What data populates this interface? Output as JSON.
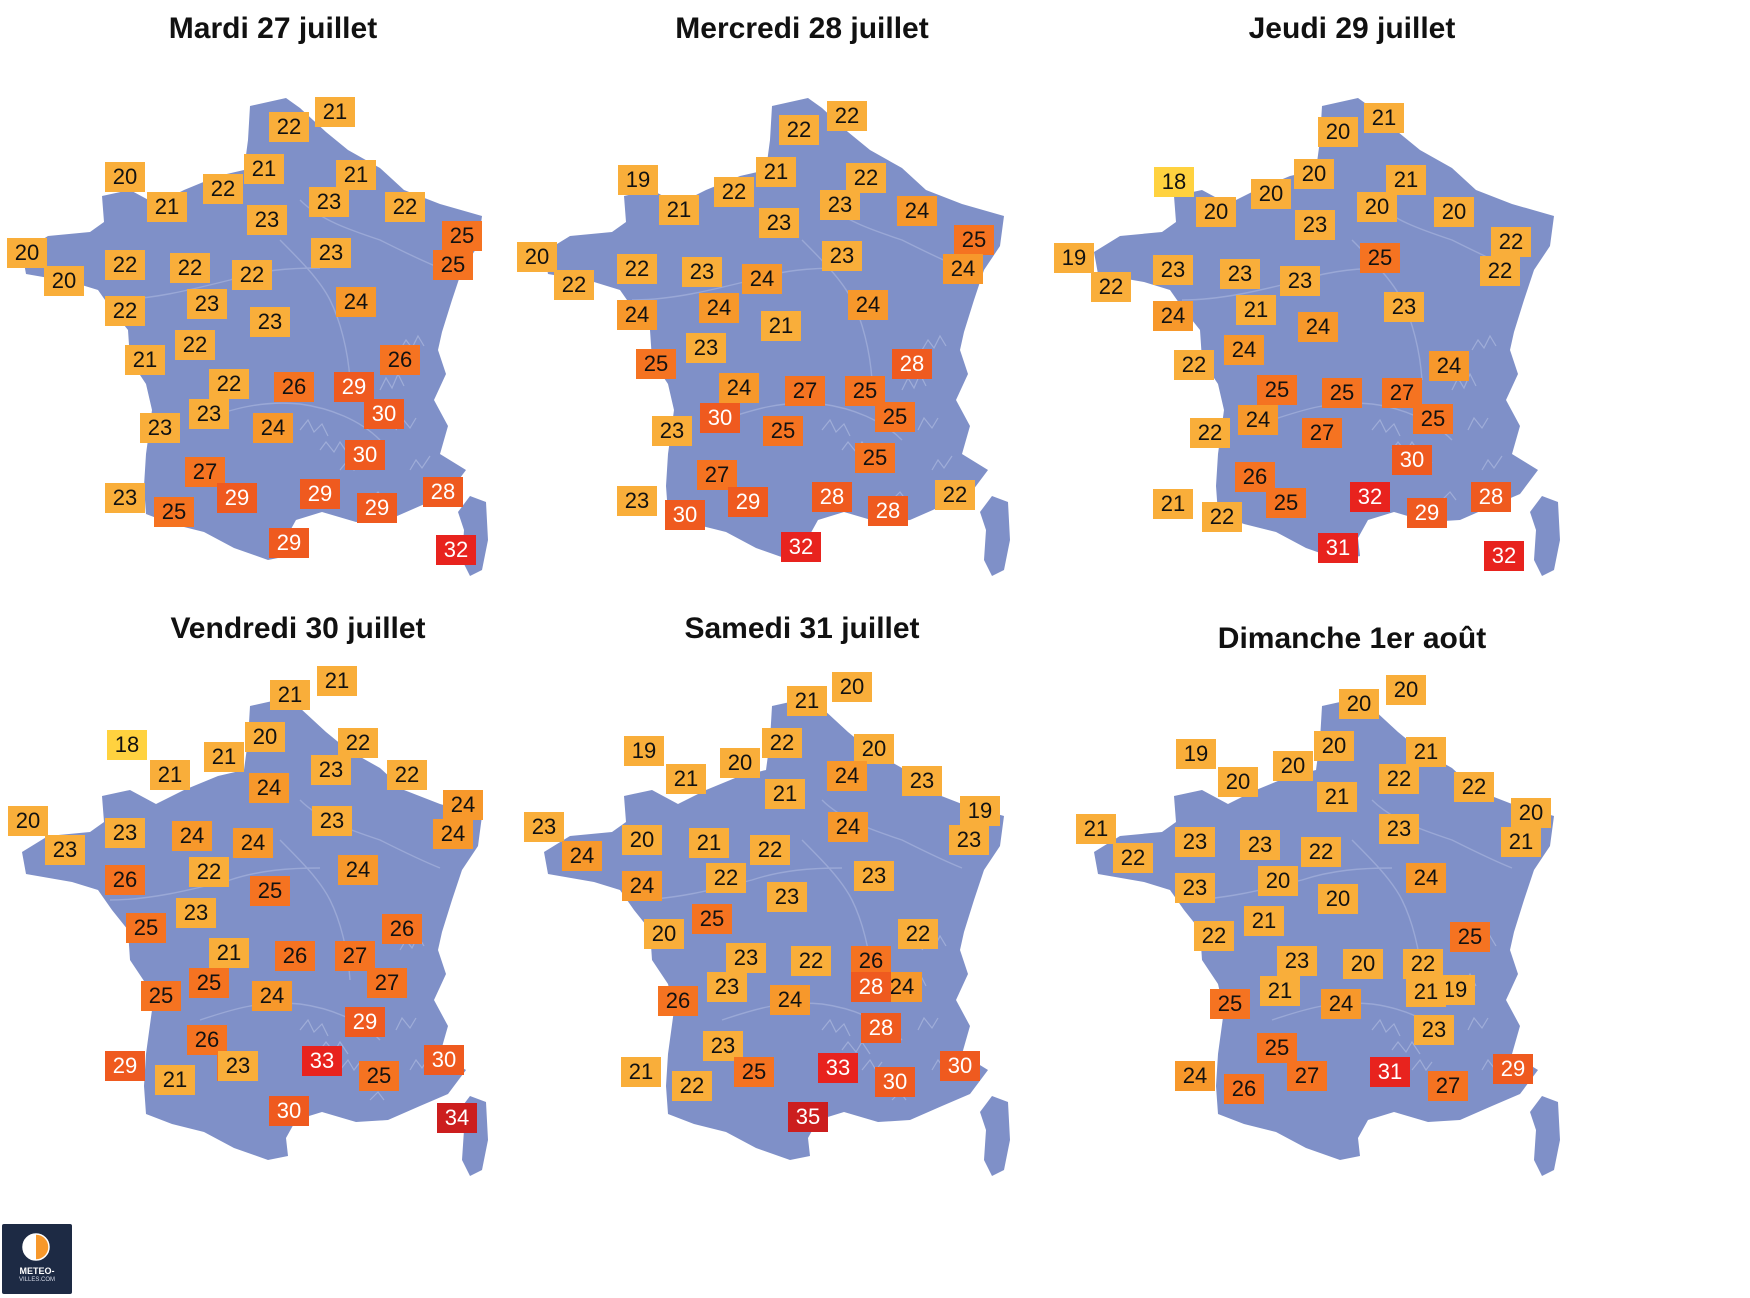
{
  "colors": {
    "map": "#7f90c8",
    "t18": "#ffd23f",
    "t19_23": "#f9ae3a",
    "t24": "#f7982b",
    "t25_27": "#f57321",
    "t28_30": "#ef5a1f",
    "t31_33": "#e8231e",
    "t34_35": "#cc1e1e"
  },
  "logo": {
    "text": "METEO-",
    "sub": "VILLES.COM"
  },
  "panels": [
    {
      "title": "Mardi 27 juillet",
      "temps": [
        21,
        22,
        20,
        21,
        22,
        21,
        21,
        23,
        23,
        22,
        20,
        25,
        25,
        20,
        22,
        22,
        22,
        23,
        23,
        24,
        22,
        23,
        22,
        21,
        26,
        22,
        29,
        26,
        30,
        23,
        24,
        23,
        30,
        27,
        29,
        29,
        29,
        28,
        23,
        25,
        29,
        32
      ]
    },
    {
      "title": "Mercredi 28 juillet",
      "temps": [
        22,
        22,
        19,
        21,
        22,
        21,
        22,
        23,
        23,
        24,
        20,
        25,
        24,
        22,
        22,
        23,
        24,
        24,
        23,
        24,
        24,
        21,
        23,
        25,
        24,
        27,
        25,
        28,
        25,
        23,
        25,
        30,
        25,
        27,
        29,
        28,
        28,
        22,
        23,
        30,
        32
      ]
    },
    {
      "title": "Jeudi 29 juillet",
      "temps": [
        21,
        20,
        18,
        20,
        20,
        20,
        21,
        20,
        23,
        20,
        19,
        22,
        22,
        22,
        23,
        23,
        23,
        21,
        25,
        23,
        24,
        24,
        24,
        22,
        25,
        25,
        27,
        24,
        25,
        22,
        27,
        24,
        30,
        26,
        32,
        28,
        21,
        22,
        25,
        29,
        31,
        32
      ]
    },
    {
      "title": "Vendredi 30 juillet",
      "temps": [
        21,
        21,
        18,
        21,
        21,
        20,
        22,
        23,
        24,
        22,
        20,
        24,
        24,
        23,
        23,
        24,
        24,
        22,
        23,
        24,
        26,
        25,
        23,
        25,
        21,
        26,
        27,
        26,
        27,
        25,
        25,
        26,
        24,
        29,
        26,
        33,
        29,
        21,
        23,
        25,
        30,
        30,
        34
      ]
    },
    {
      "title": "Samedi 31 juillet",
      "temps": [
        20,
        21,
        19,
        21,
        20,
        22,
        20,
        24,
        21,
        23,
        23,
        19,
        23,
        24,
        20,
        21,
        22,
        22,
        24,
        23,
        24,
        23,
        25,
        20,
        23,
        22,
        26,
        22,
        24,
        26,
        23,
        24,
        23,
        28,
        28,
        21,
        22,
        25,
        33,
        30,
        30,
        35
      ]
    },
    {
      "title": "Dimanche 1er août",
      "temps": [
        20,
        20,
        19,
        20,
        20,
        20,
        21,
        22,
        21,
        22,
        21,
        20,
        21,
        22,
        23,
        23,
        22,
        20,
        23,
        24,
        23,
        20,
        21,
        22,
        23,
        20,
        22,
        25,
        19,
        25,
        21,
        24,
        25,
        21,
        23,
        24,
        26,
        27,
        31,
        27,
        29
      ]
    }
  ]
}
